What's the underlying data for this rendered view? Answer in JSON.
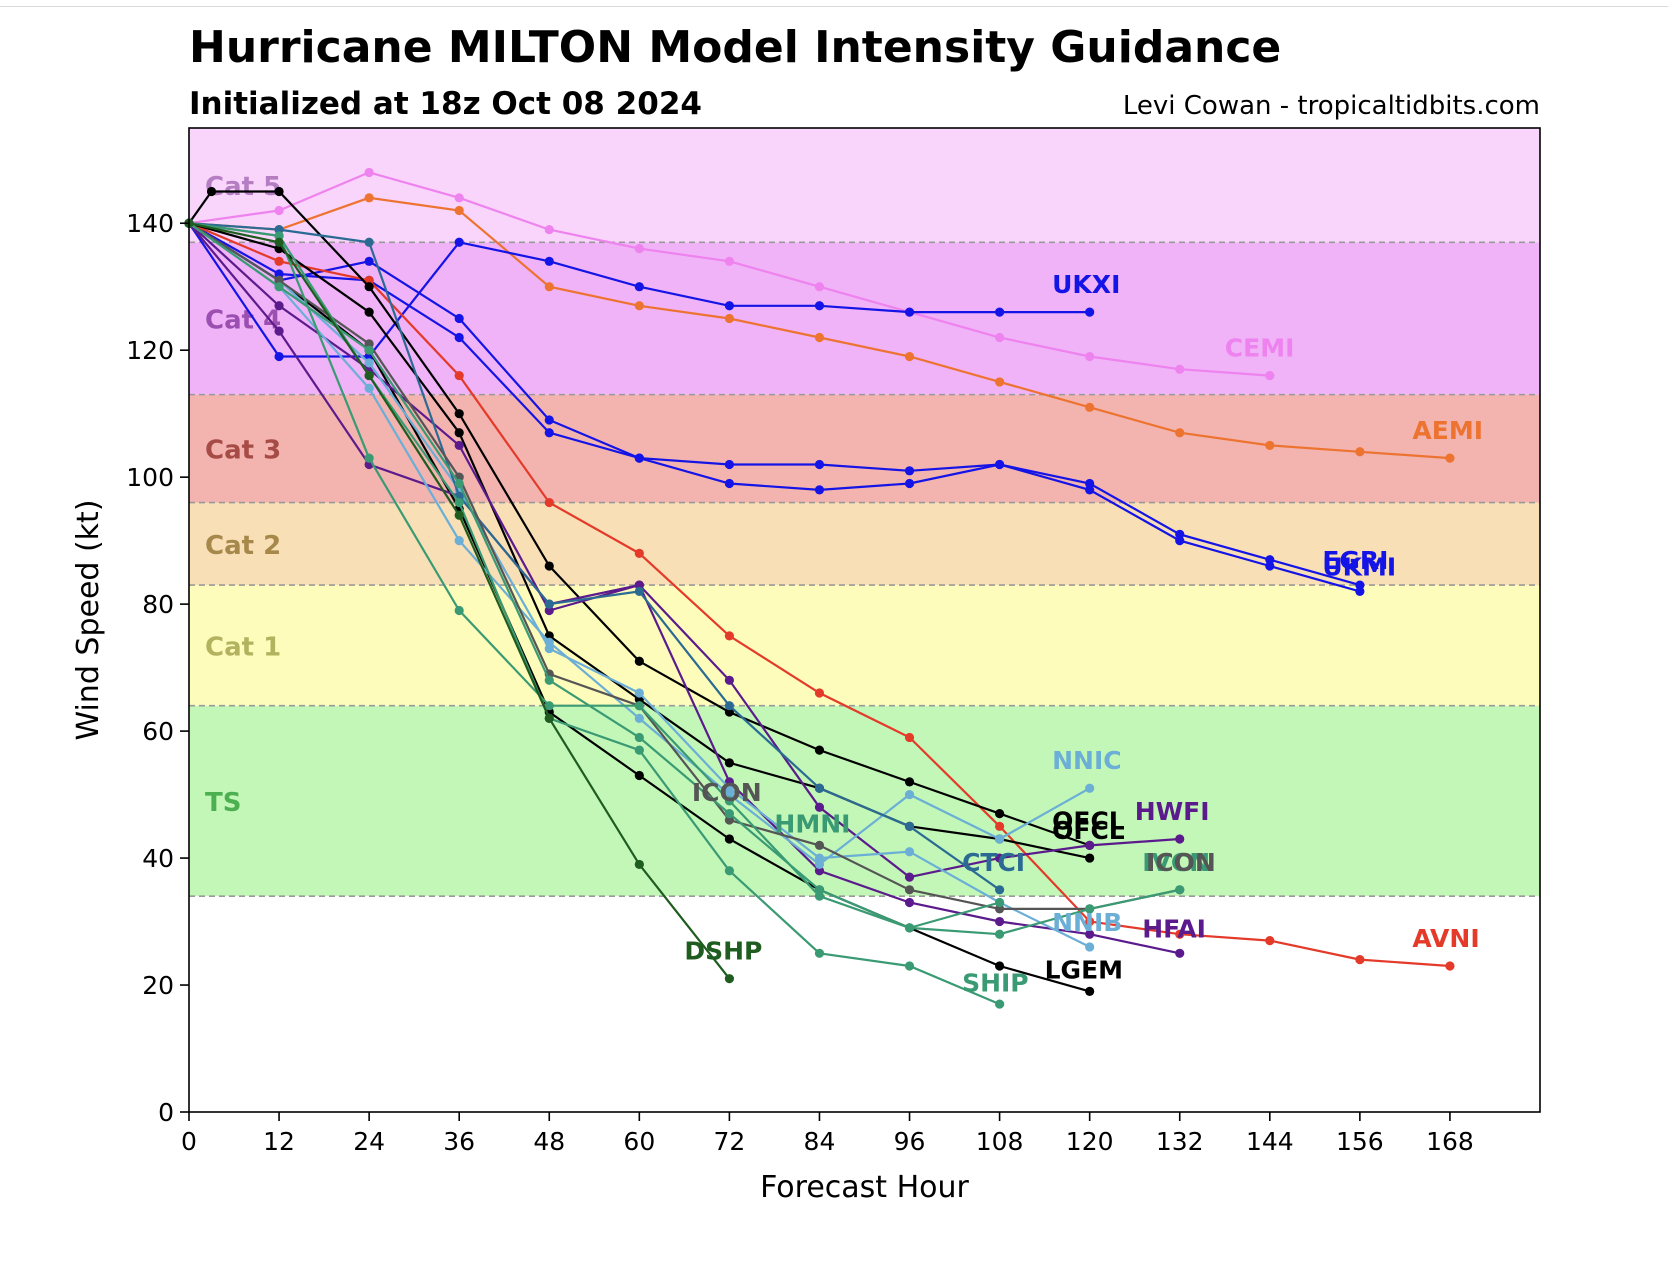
{
  "header": {
    "title": "Hurricane MILTON Model Intensity Guidance",
    "subtitle": "Initialized at 18z Oct 08 2024",
    "credit": "Levi Cowan - tropicaltidbits.com"
  },
  "chart_data": {
    "type": "line",
    "xlabel": "Forecast Hour",
    "ylabel": "Wind Speed (kt)",
    "xlim": [
      0,
      180
    ],
    "ylim": [
      0,
      155
    ],
    "xticks": [
      0,
      12,
      24,
      36,
      48,
      60,
      72,
      84,
      96,
      108,
      120,
      132,
      144,
      156,
      168
    ],
    "yticks": [
      0,
      20,
      40,
      60,
      80,
      100,
      120,
      140
    ],
    "grid": false,
    "bands": [
      {
        "label": "TS",
        "from": 34,
        "to": 64,
        "color": "#c2f7b8",
        "label_color": "#4caf50"
      },
      {
        "label": "Cat 1",
        "from": 64,
        "to": 83,
        "color": "#fefcbb",
        "label_color": "#b3b35f"
      },
      {
        "label": "Cat 2",
        "from": 83,
        "to": 96,
        "color": "#f8dfb6",
        "label_color": "#a6884a"
      },
      {
        "label": "Cat 3",
        "from": 96,
        "to": 113,
        "color": "#f3b4b0",
        "label_color": "#a64b46"
      },
      {
        "label": "Cat 4",
        "from": 113,
        "to": 137,
        "color": "#f0b3f7",
        "label_color": "#9b4fb0"
      },
      {
        "label": "Cat 5",
        "from": 137,
        "to": 155,
        "color": "#f9d5fb",
        "label_color": "#b57ec2"
      }
    ],
    "series": [
      {
        "name": "CEMI",
        "color": "#ee82ee",
        "x": [
          0,
          12,
          24,
          36,
          48,
          60,
          72,
          84,
          96,
          108,
          120,
          132,
          144
        ],
        "y": [
          140,
          142,
          148,
          144,
          139,
          136,
          134,
          130,
          126,
          122,
          119,
          117,
          116
        ]
      },
      {
        "name": "AEMI",
        "color": "#ed7330",
        "x": [
          0,
          12,
          24,
          36,
          48,
          60,
          72,
          84,
          96,
          108,
          120,
          132,
          144,
          156,
          168
        ],
        "y": [
          140,
          139,
          144,
          142,
          130,
          127,
          125,
          122,
          119,
          115,
          111,
          107,
          105,
          104,
          103
        ]
      },
      {
        "name": "UKXI",
        "color": "#1414e6",
        "x": [
          0,
          12,
          24,
          36,
          48,
          60,
          72,
          84,
          96,
          108,
          120
        ],
        "y": [
          140,
          119,
          119,
          137,
          134,
          130,
          127,
          127,
          126,
          126,
          126
        ]
      },
      {
        "name": "EGRI",
        "color": "#1414e6",
        "x": [
          0,
          12,
          24,
          36,
          48,
          60,
          72,
          84,
          96,
          108,
          120,
          132,
          144,
          156
        ],
        "y": [
          140,
          131,
          134,
          125,
          109,
          103,
          102,
          102,
          101,
          102,
          99,
          91,
          87,
          83
        ]
      },
      {
        "name": "UKMI",
        "color": "#1414e6",
        "x": [
          0,
          12,
          24,
          36,
          48,
          60,
          72,
          84,
          96,
          108,
          120,
          132,
          144,
          156
        ],
        "y": [
          140,
          132,
          131,
          122,
          107,
          103,
          99,
          98,
          99,
          102,
          98,
          90,
          86,
          82
        ]
      },
      {
        "name": "AVNI",
        "color": "#e43a2a",
        "x": [
          0,
          12,
          24,
          36,
          48,
          60,
          72,
          84,
          96,
          108,
          120,
          132,
          144,
          156,
          168
        ],
        "y": [
          140,
          134,
          131,
          116,
          96,
          88,
          75,
          66,
          59,
          45,
          30,
          28,
          27,
          24,
          23
        ]
      },
      {
        "name": "OFCL",
        "color": "#000000",
        "x": [
          0,
          3,
          12,
          24,
          36,
          48,
          60,
          72,
          84,
          96,
          108,
          120
        ],
        "y": [
          140,
          145,
          145,
          130,
          110,
          86,
          71,
          63,
          57,
          52,
          47,
          42
        ]
      },
      {
        "name": "OFCL",
        "color": "#000000",
        "x": [
          0,
          12,
          24,
          36,
          48,
          60,
          72,
          84,
          96,
          108,
          120
        ],
        "y": [
          140,
          136,
          126,
          107,
          75,
          65,
          55,
          51,
          45,
          43,
          40
        ]
      },
      {
        "name": "LGEM",
        "color": "#000000",
        "x": [
          0,
          12,
          24,
          36,
          48,
          60,
          72,
          84,
          96,
          108,
          120
        ],
        "y": [
          140,
          131,
          120,
          95,
          63,
          53,
          43,
          35,
          29,
          23,
          19
        ]
      },
      {
        "name": "HWFI",
        "color": "#5b1b8c",
        "x": [
          0,
          12,
          24,
          36,
          48,
          60,
          72,
          84,
          96,
          108,
          120,
          132
        ],
        "y": [
          140,
          127,
          117,
          105,
          79,
          83,
          68,
          48,
          37,
          40,
          42,
          43
        ]
      },
      {
        "name": "HFAI",
        "color": "#5b1b8c",
        "x": [
          0,
          12,
          24,
          36,
          48,
          60,
          72,
          84,
          96,
          108,
          120,
          132
        ],
        "y": [
          140,
          123,
          102,
          97,
          80,
          83,
          52,
          38,
          33,
          30,
          28,
          25
        ]
      },
      {
        "name": "NNIC",
        "color": "#6baed6",
        "x": [
          0,
          12,
          24,
          36,
          48,
          60,
          72,
          84,
          96,
          108,
          120
        ],
        "y": [
          140,
          130,
          114,
          90,
          74,
          62,
          50,
          39,
          50,
          43,
          51
        ]
      },
      {
        "name": "NNIB",
        "color": "#6baed6",
        "x": [
          0,
          12,
          24,
          36,
          48,
          60,
          72,
          84,
          96,
          108,
          120
        ],
        "y": [
          140,
          131,
          118,
          98,
          73,
          66,
          51,
          40,
          41,
          33,
          26
        ]
      },
      {
        "name": "CTCI",
        "color": "#2b6b93",
        "x": [
          0,
          12,
          24,
          36,
          48,
          60,
          72,
          84,
          96,
          108
        ],
        "y": [
          140,
          139,
          137,
          97,
          80,
          82,
          64,
          51,
          45,
          35
        ]
      },
      {
        "name": "ICON",
        "color": "#555555",
        "x": [
          0,
          12,
          24,
          36,
          48,
          60,
          72,
          84,
          96,
          108,
          120,
          132
        ],
        "y": [
          140,
          131,
          121,
          100,
          69,
          64,
          46,
          42,
          35,
          32,
          32,
          35
        ]
      },
      {
        "name": "IVCN",
        "color": "#3a9a73",
        "x": [
          0,
          12,
          24,
          36,
          48,
          60,
          72,
          84,
          96,
          108,
          120,
          132
        ],
        "y": [
          140,
          130,
          120,
          99,
          68,
          59,
          47,
          35,
          29,
          28,
          32,
          35
        ]
      },
      {
        "name": "HMNI",
        "color": "#3a9a73",
        "x": [
          0,
          12,
          24,
          36,
          48,
          60,
          72,
          84,
          96,
          108
        ],
        "y": [
          140,
          138,
          103,
          79,
          64,
          64,
          49,
          34,
          29,
          33
        ]
      },
      {
        "name": "SHIP",
        "color": "#3a9a73",
        "x": [
          0,
          12,
          24,
          36,
          48,
          60,
          72,
          84,
          96,
          108
        ],
        "y": [
          140,
          138,
          116,
          96,
          62,
          57,
          38,
          25,
          23,
          17
        ]
      },
      {
        "name": "DSHP",
        "color": "#1f5c1f",
        "x": [
          0,
          12,
          24,
          36,
          48,
          60,
          72
        ],
        "y": [
          140,
          137,
          116,
          94,
          62,
          39,
          21
        ]
      }
    ],
    "series_labels": [
      {
        "text": "UKXI",
        "color": "#1414e6",
        "x": 115,
        "y": 129
      },
      {
        "text": "CEMI",
        "color": "#ee82ee",
        "x": 138,
        "y": 119
      },
      {
        "text": "AEMI",
        "color": "#ed7330",
        "x": 163,
        "y": 106
      },
      {
        "text": "EGRI",
        "color": "#1414e6",
        "x": 151,
        "y": 85.5
      },
      {
        "text": "UKMI",
        "color": "#1414e6",
        "x": 151,
        "y": 84.5
      },
      {
        "text": "NNIC",
        "color": "#6baed6",
        "x": 115,
        "y": 54
      },
      {
        "text": "HWFI",
        "color": "#5b1b8c",
        "x": 126,
        "y": 46
      },
      {
        "text": "OFCL",
        "color": "#000000",
        "x": 115,
        "y": 44.5
      },
      {
        "text": "OFCL",
        "color": "#000000",
        "x": 115,
        "y": 43
      },
      {
        "text": "IVCN",
        "color": "#3a9a73",
        "x": 127,
        "y": 38
      },
      {
        "text": "ICON",
        "color": "#555555",
        "x": 127.5,
        "y": 38
      },
      {
        "text": "CTCI",
        "color": "#2b6b93",
        "x": 103,
        "y": 38
      },
      {
        "text": "HMNI",
        "color": "#3a9a73",
        "x": 78,
        "y": 44
      },
      {
        "text": "ICON",
        "color": "#555555",
        "x": 67,
        "y": 49
      },
      {
        "text": "NNIB",
        "color": "#6baed6",
        "x": 115,
        "y": 28.5
      },
      {
        "text": "HFAI",
        "color": "#5b1b8c",
        "x": 127,
        "y": 27.5
      },
      {
        "text": "AVNI",
        "color": "#e43a2a",
        "x": 163,
        "y": 26
      },
      {
        "text": "LGEM",
        "color": "#000000",
        "x": 114,
        "y": 21
      },
      {
        "text": "SHIP",
        "color": "#3a9a73",
        "x": 103,
        "y": 19
      },
      {
        "text": "DSHP",
        "color": "#1f5c1f",
        "x": 66,
        "y": 24
      }
    ]
  }
}
